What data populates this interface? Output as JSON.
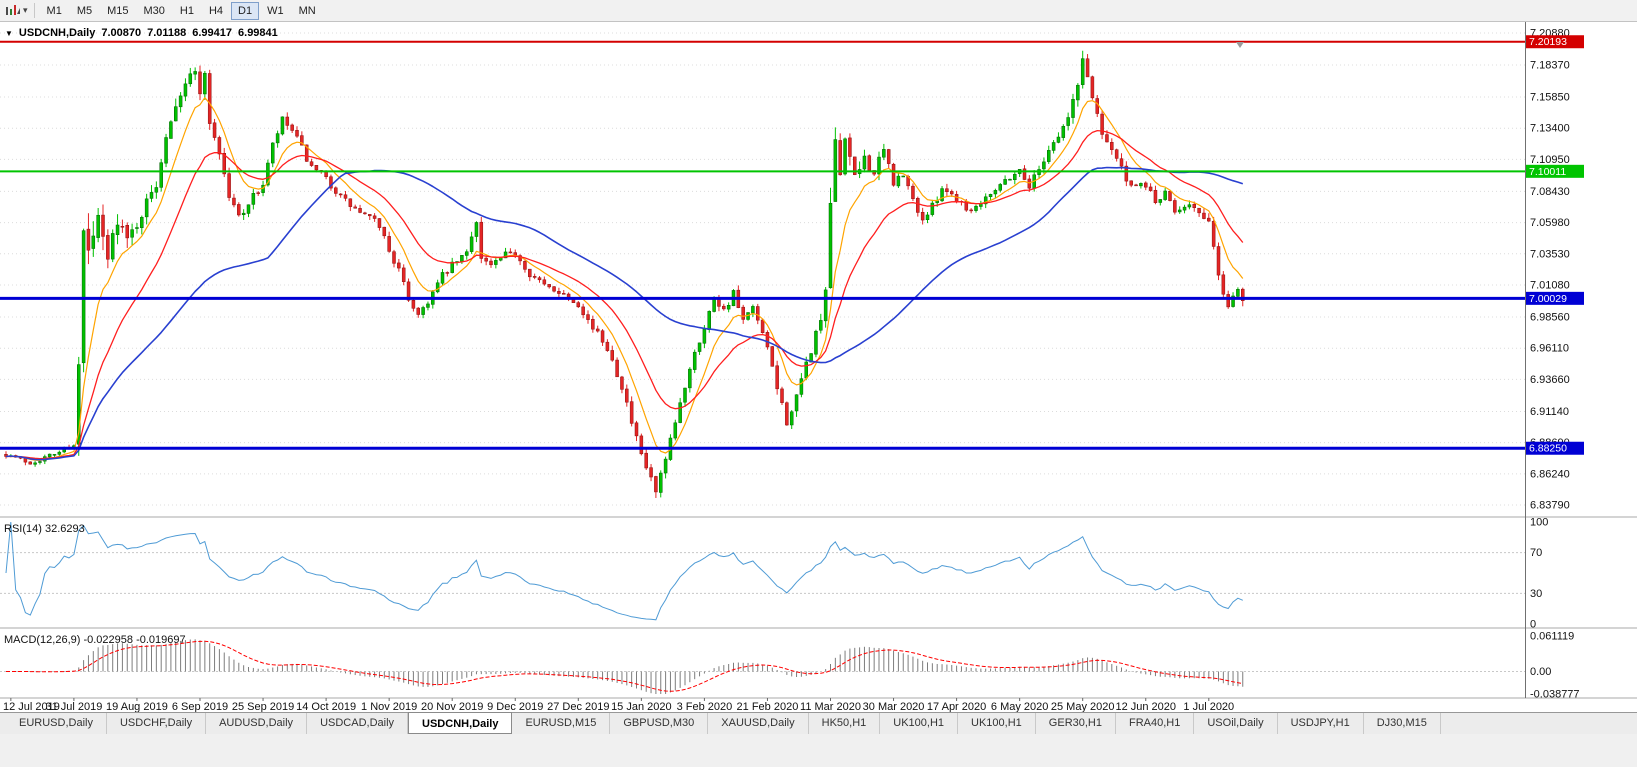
{
  "icons": {
    "collapse": "▼",
    "dropdown": "▾"
  },
  "toolbar": {
    "timeframes": [
      "M1",
      "M5",
      "M15",
      "M30",
      "H1",
      "H4",
      "D1",
      "W1",
      "MN"
    ],
    "active_timeframe": "D1"
  },
  "chart_header": {
    "symbol": "USDCNH,Daily",
    "open": "7.00870",
    "high": "7.01188",
    "low": "6.99417",
    "close": "6.99841"
  },
  "price_scale": {
    "ticks": [
      "7.20880",
      "7.18370",
      "7.15850",
      "7.13400",
      "7.10950",
      "7.08430",
      "7.05980",
      "7.03530",
      "7.01080",
      "6.98560",
      "6.96110",
      "6.93660",
      "6.91140",
      "6.88690",
      "6.86240",
      "6.83790"
    ],
    "max": 7.2088,
    "min": 6.8379
  },
  "hlines": [
    {
      "value": 7.20193,
      "label": "7.20193",
      "color": "#d40000",
      "width": 2
    },
    {
      "value": 7.10011,
      "label": "7.10011",
      "color": "#00c400",
      "width": 2
    },
    {
      "value": 7.00029,
      "label": "7.00029",
      "color": "#0000d4",
      "width": 3
    },
    {
      "value": 6.8825,
      "label": "6.88250",
      "color": "#0000d4",
      "width": 3
    }
  ],
  "rsi": {
    "label": "RSI(14)",
    "value": "32.6293",
    "scale": [
      "100",
      "70",
      "30",
      "0"
    ],
    "levels": [
      70,
      30
    ],
    "color": "#4f9bd5"
  },
  "macd": {
    "label": "MACD(12,26,9)",
    "values_text": "-0.022958 -0.019697",
    "scale_top": "0.061119",
    "scale_zero": "0.00",
    "scale_bottom": "-0.038777",
    "max": 0.061119,
    "min": -0.038777,
    "histogram_color": "#7d7d7d",
    "signal_color": "#ff0000"
  },
  "x_axis": {
    "labels": [
      "12 Jul 2019",
      "31 Jul 2019",
      "19 Aug 2019",
      "6 Sep 2019",
      "25 Sep 2019",
      "14 Oct 2019",
      "1 Nov 2019",
      "20 Nov 2019",
      "9 Dec 2019",
      "27 Dec 2019",
      "15 Jan 2020",
      "3 Feb 2020",
      "21 Feb 2020",
      "11 Mar 2020",
      "30 Mar 2020",
      "17 Apr 2020",
      "6 May 2020",
      "25 May 2020",
      "12 Jun 2020",
      "1 Jul 2020"
    ]
  },
  "tabs": {
    "active_index": 4,
    "items": [
      "EURUSD,Daily",
      "USDCHF,Daily",
      "AUDUSD,Daily",
      "USDCAD,Daily",
      "USDCNH,Daily",
      "EURUSD,M15",
      "GBPUSD,M30",
      "XAUUSD,Daily",
      "HK50,H1",
      "UK100,H1",
      "UK100,H1",
      "GER30,H1",
      "FRA40,H1",
      "USOil,Daily",
      "USDJPY,H1",
      "DJ30,M15"
    ]
  },
  "chart_data": {
    "type": "candlestick",
    "symbol": "USDCNH",
    "timeframe": "Daily",
    "candle_count": 256,
    "seed": 7,
    "last_close": 6.99841,
    "clamp": {
      "high": 7.199,
      "low": 6.8385
    },
    "candle_colors": {
      "up": "#00c000",
      "down": "#e42525",
      "up_stroke": "#006000",
      "down_stroke": "#8a1010"
    },
    "moving_averages": [
      {
        "period": 8,
        "method": "ema",
        "color": "#ffa400",
        "width": 1.2
      },
      {
        "period": 20,
        "method": "ema",
        "color": "#ff1f1f",
        "width": 1.3
      },
      {
        "period": 55,
        "method": "sma",
        "color": "#2940d0",
        "width": 1.6
      }
    ],
    "price_waypoints": [
      [
        0,
        6.878,
        0.005
      ],
      [
        5,
        6.871,
        0.005
      ],
      [
        10,
        6.878,
        0.005
      ],
      [
        14,
        6.886,
        0.006
      ],
      [
        15,
        6.945,
        0.022
      ],
      [
        16,
        7.05,
        0.028
      ],
      [
        17,
        7.035,
        0.026
      ],
      [
        19,
        7.06,
        0.022
      ],
      [
        21,
        7.03,
        0.022
      ],
      [
        23,
        7.065,
        0.018
      ],
      [
        25,
        7.045,
        0.016
      ],
      [
        27,
        7.06,
        0.014
      ],
      [
        29,
        7.075,
        0.012
      ],
      [
        31,
        7.09,
        0.012
      ],
      [
        33,
        7.13,
        0.013
      ],
      [
        35,
        7.155,
        0.013
      ],
      [
        37,
        7.17,
        0.011
      ],
      [
        39,
        7.178,
        0.012
      ],
      [
        40,
        7.165,
        0.012
      ],
      [
        41,
        7.175,
        0.01
      ],
      [
        42,
        7.14,
        0.012
      ],
      [
        44,
        7.115,
        0.01
      ],
      [
        46,
        7.08,
        0.01
      ],
      [
        48,
        7.065,
        0.009
      ],
      [
        50,
        7.075,
        0.008
      ],
      [
        53,
        7.09,
        0.009
      ],
      [
        55,
        7.12,
        0.009
      ],
      [
        57,
        7.14,
        0.008
      ],
      [
        59,
        7.132,
        0.008
      ],
      [
        61,
        7.118,
        0.008
      ],
      [
        63,
        7.102,
        0.008
      ],
      [
        66,
        7.094,
        0.008
      ],
      [
        69,
        7.08,
        0.007
      ],
      [
        72,
        7.07,
        0.007
      ],
      [
        75,
        7.063,
        0.007
      ],
      [
        77,
        7.058,
        0.008
      ],
      [
        79,
        7.038,
        0.008
      ],
      [
        81,
        7.022,
        0.008
      ],
      [
        83,
        7.0,
        0.008
      ],
      [
        85,
        6.988,
        0.007
      ],
      [
        87,
        6.998,
        0.007
      ],
      [
        90,
        7.018,
        0.007
      ],
      [
        92,
        7.026,
        0.007
      ],
      [
        95,
        7.036,
        0.007
      ],
      [
        97,
        7.065,
        0.016
      ],
      [
        98,
        7.032,
        0.01
      ],
      [
        100,
        7.026,
        0.007
      ],
      [
        103,
        7.034,
        0.007
      ],
      [
        105,
        7.036,
        0.007
      ],
      [
        108,
        7.02,
        0.007
      ],
      [
        111,
        7.01,
        0.007
      ],
      [
        114,
        7.006,
        0.006
      ],
      [
        118,
        6.996,
        0.006
      ],
      [
        121,
        6.977,
        0.007
      ],
      [
        124,
        6.962,
        0.008
      ],
      [
        127,
        6.932,
        0.009
      ],
      [
        129,
        6.902,
        0.009
      ],
      [
        131,
        6.876,
        0.009
      ],
      [
        133,
        6.858,
        0.009
      ],
      [
        134,
        6.847,
        0.012
      ],
      [
        136,
        6.872,
        0.009
      ],
      [
        138,
        6.902,
        0.009
      ],
      [
        140,
        6.932,
        0.009
      ],
      [
        142,
        6.96,
        0.009
      ],
      [
        144,
        6.976,
        0.008
      ],
      [
        146,
        7.002,
        0.008
      ],
      [
        148,
        6.991,
        0.008
      ],
      [
        150,
        7.004,
        0.008
      ],
      [
        152,
        6.982,
        0.008
      ],
      [
        154,
        6.992,
        0.008
      ],
      [
        156,
        6.972,
        0.008
      ],
      [
        158,
        6.946,
        0.009
      ],
      [
        160,
        6.916,
        0.01
      ],
      [
        161,
        6.904,
        0.01
      ],
      [
        163,
        6.921,
        0.01
      ],
      [
        165,
        6.948,
        0.01
      ],
      [
        167,
        6.972,
        0.011
      ],
      [
        169,
        7.0,
        0.018
      ],
      [
        170,
        7.075,
        0.03
      ],
      [
        171,
        7.118,
        0.024
      ],
      [
        172,
        7.098,
        0.022
      ],
      [
        173,
        7.13,
        0.016
      ],
      [
        175,
        7.092,
        0.016
      ],
      [
        177,
        7.112,
        0.013
      ],
      [
        179,
        7.098,
        0.012
      ],
      [
        181,
        7.116,
        0.01
      ],
      [
        183,
        7.092,
        0.01
      ],
      [
        185,
        7.096,
        0.009
      ],
      [
        187,
        7.078,
        0.009
      ],
      [
        189,
        7.062,
        0.008
      ],
      [
        191,
        7.072,
        0.008
      ],
      [
        193,
        7.088,
        0.008
      ],
      [
        196,
        7.079,
        0.008
      ],
      [
        199,
        7.069,
        0.007
      ],
      [
        202,
        7.081,
        0.007
      ],
      [
        205,
        7.09,
        0.007
      ],
      [
        207,
        7.096,
        0.007
      ],
      [
        209,
        7.101,
        0.008
      ],
      [
        211,
        7.089,
        0.008
      ],
      [
        213,
        7.102,
        0.008
      ],
      [
        215,
        7.118,
        0.008
      ],
      [
        217,
        7.128,
        0.008
      ],
      [
        219,
        7.142,
        0.01
      ],
      [
        221,
        7.168,
        0.012
      ],
      [
        222,
        7.188,
        0.013
      ],
      [
        223,
        7.176,
        0.012
      ],
      [
        224,
        7.158,
        0.01
      ],
      [
        226,
        7.132,
        0.01
      ],
      [
        228,
        7.118,
        0.009
      ],
      [
        230,
        7.102,
        0.009
      ],
      [
        232,
        7.086,
        0.008
      ],
      [
        235,
        7.09,
        0.008
      ],
      [
        237,
        7.076,
        0.008
      ],
      [
        239,
        7.082,
        0.008
      ],
      [
        241,
        7.069,
        0.007
      ],
      [
        244,
        7.076,
        0.007
      ],
      [
        246,
        7.066,
        0.007
      ],
      [
        248,
        7.058,
        0.008
      ],
      [
        249,
        7.044,
        0.009
      ],
      [
        250,
        7.018,
        0.012
      ],
      [
        251,
        7.002,
        0.008
      ],
      [
        252,
        6.994,
        0.006
      ],
      [
        253,
        7.004,
        0.006
      ],
      [
        254,
        7.008,
        0.006
      ],
      [
        255,
        6.9984,
        0.006
      ]
    ]
  }
}
